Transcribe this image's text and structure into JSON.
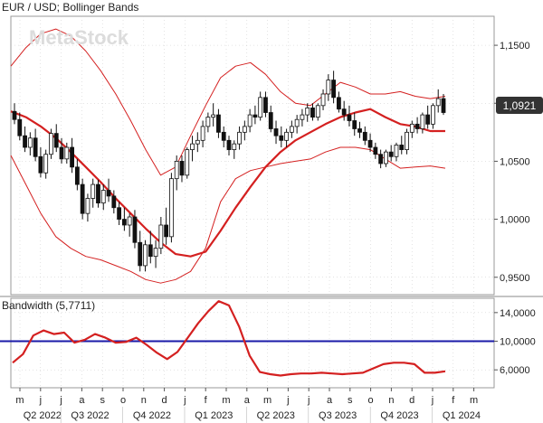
{
  "header": {
    "title": "EUR / USD; Bollinger Bands"
  },
  "watermark": "MetaStock",
  "price_badge": "1,0921",
  "bandwidth_panel": {
    "title": "Bandwidth (5,7711)"
  },
  "colors": {
    "background": "#ffffff",
    "grid": "#c8c8c8",
    "middle_band": "#d42020",
    "outer_band": "#d42020",
    "bandwidth_line": "#d42020",
    "reference_line": "#1a1aa8",
    "bull_candle": "#ffffff",
    "bear_candle": "#111111",
    "badge_bg": "#333333",
    "badge_text": "#ffffff"
  },
  "x_axis": {
    "month_ticks": [
      "m",
      "j",
      "j",
      "a",
      "s",
      "o",
      "n",
      "d",
      "j",
      "f",
      "m",
      "a",
      "m",
      "j",
      "j",
      "a",
      "s",
      "o",
      "n",
      "d",
      "j",
      "f",
      "m"
    ],
    "quarter_labels": [
      "Q2 2022",
      "Q3 2022",
      "Q4 2022",
      "Q1 2023",
      "Q2 2023",
      "Q3 2023",
      "Q4 2023",
      "Q1 2024"
    ]
  },
  "chart_data": [
    {
      "type": "candlestick",
      "title": "EUR / USD; Bollinger Bands",
      "y_ticks": [
        "1,1500",
        "1,1000",
        "1,0500",
        "1,0000",
        "0,9500"
      ],
      "ylim": [
        0.935,
        1.175
      ],
      "x_range": [
        "2022-05",
        "2024-03"
      ],
      "last_value": 1.0921,
      "candles": [
        {
          "o": 1.093,
          "h": 1.1,
          "l": 1.082,
          "c": 1.086
        },
        {
          "o": 1.086,
          "h": 1.092,
          "l": 1.068,
          "c": 1.072
        },
        {
          "o": 1.072,
          "h": 1.08,
          "l": 1.058,
          "c": 1.062
        },
        {
          "o": 1.062,
          "h": 1.075,
          "l": 1.055,
          "c": 1.07
        },
        {
          "o": 1.07,
          "h": 1.078,
          "l": 1.05,
          "c": 1.054
        },
        {
          "o": 1.054,
          "h": 1.062,
          "l": 1.036,
          "c": 1.04
        },
        {
          "o": 1.04,
          "h": 1.06,
          "l": 1.035,
          "c": 1.056
        },
        {
          "o": 1.056,
          "h": 1.078,
          "l": 1.052,
          "c": 1.074
        },
        {
          "o": 1.074,
          "h": 1.082,
          "l": 1.058,
          "c": 1.062
        },
        {
          "o": 1.062,
          "h": 1.07,
          "l": 1.048,
          "c": 1.052
        },
        {
          "o": 1.052,
          "h": 1.066,
          "l": 1.048,
          "c": 1.062
        },
        {
          "o": 1.062,
          "h": 1.07,
          "l": 1.04,
          "c": 1.045
        },
        {
          "o": 1.045,
          "h": 1.052,
          "l": 1.025,
          "c": 1.03
        },
        {
          "o": 1.03,
          "h": 1.035,
          "l": 1.0,
          "c": 1.005
        },
        {
          "o": 1.005,
          "h": 1.022,
          "l": 0.998,
          "c": 1.018
        },
        {
          "o": 1.018,
          "h": 1.035,
          "l": 1.01,
          "c": 1.03
        },
        {
          "o": 1.03,
          "h": 1.034,
          "l": 1.01,
          "c": 1.014
        },
        {
          "o": 1.014,
          "h": 1.03,
          "l": 1.008,
          "c": 1.025
        },
        {
          "o": 1.025,
          "h": 1.035,
          "l": 1.015,
          "c": 1.02
        },
        {
          "o": 1.02,
          "h": 1.025,
          "l": 1.005,
          "c": 1.01
        },
        {
          "o": 1.01,
          "h": 1.015,
          "l": 0.995,
          "c": 1.0
        },
        {
          "o": 1.0,
          "h": 1.01,
          "l": 0.99,
          "c": 0.995
        },
        {
          "o": 0.995,
          "h": 1.005,
          "l": 0.985,
          "c": 1.002
        },
        {
          "o": 1.002,
          "h": 1.008,
          "l": 0.975,
          "c": 0.98
        },
        {
          "o": 0.98,
          "h": 0.99,
          "l": 0.955,
          "c": 0.96
        },
        {
          "o": 0.96,
          "h": 0.982,
          "l": 0.955,
          "c": 0.978
        },
        {
          "o": 0.978,
          "h": 0.99,
          "l": 0.962,
          "c": 0.968
        },
        {
          "o": 0.968,
          "h": 0.982,
          "l": 0.958,
          "c": 0.975
        },
        {
          "o": 0.975,
          "h": 1.002,
          "l": 0.97,
          "c": 0.995
        },
        {
          "o": 0.995,
          "h": 1.01,
          "l": 0.978,
          "c": 0.985
        },
        {
          "o": 0.985,
          "h": 1.04,
          "l": 0.98,
          "c": 1.035
        },
        {
          "o": 1.035,
          "h": 1.055,
          "l": 1.025,
          "c": 1.05
        },
        {
          "o": 1.05,
          "h": 1.055,
          "l": 1.032,
          "c": 1.038
        },
        {
          "o": 1.038,
          "h": 1.062,
          "l": 1.035,
          "c": 1.06
        },
        {
          "o": 1.06,
          "h": 1.072,
          "l": 1.05,
          "c": 1.065
        },
        {
          "o": 1.065,
          "h": 1.075,
          "l": 1.058,
          "c": 1.068
        },
        {
          "o": 1.068,
          "h": 1.085,
          "l": 1.062,
          "c": 1.08
        },
        {
          "o": 1.08,
          "h": 1.092,
          "l": 1.075,
          "c": 1.088
        },
        {
          "o": 1.088,
          "h": 1.1,
          "l": 1.08,
          "c": 1.09
        },
        {
          "o": 1.09,
          "h": 1.095,
          "l": 1.07,
          "c": 1.075
        },
        {
          "o": 1.075,
          "h": 1.08,
          "l": 1.062,
          "c": 1.068
        },
        {
          "o": 1.068,
          "h": 1.072,
          "l": 1.055,
          "c": 1.06
        },
        {
          "o": 1.06,
          "h": 1.068,
          "l": 1.052,
          "c": 1.065
        },
        {
          "o": 1.065,
          "h": 1.08,
          "l": 1.06,
          "c": 1.075
        },
        {
          "o": 1.075,
          "h": 1.085,
          "l": 1.068,
          "c": 1.08
        },
        {
          "o": 1.08,
          "h": 1.095,
          "l": 1.075,
          "c": 1.09
        },
        {
          "o": 1.09,
          "h": 1.098,
          "l": 1.082,
          "c": 1.088
        },
        {
          "o": 1.088,
          "h": 1.11,
          "l": 1.085,
          "c": 1.105
        },
        {
          "o": 1.105,
          "h": 1.11,
          "l": 1.088,
          "c": 1.092
        },
        {
          "o": 1.092,
          "h": 1.098,
          "l": 1.075,
          "c": 1.078
        },
        {
          "o": 1.078,
          "h": 1.085,
          "l": 1.065,
          "c": 1.072
        },
        {
          "o": 1.072,
          "h": 1.08,
          "l": 1.062,
          "c": 1.068
        },
        {
          "o": 1.068,
          "h": 1.078,
          "l": 1.062,
          "c": 1.075
        },
        {
          "o": 1.075,
          "h": 1.085,
          "l": 1.07,
          "c": 1.08
        },
        {
          "o": 1.08,
          "h": 1.09,
          "l": 1.074,
          "c": 1.086
        },
        {
          "o": 1.086,
          "h": 1.095,
          "l": 1.08,
          "c": 1.09
        },
        {
          "o": 1.09,
          "h": 1.1,
          "l": 1.084,
          "c": 1.096
        },
        {
          "o": 1.096,
          "h": 1.1,
          "l": 1.085,
          "c": 1.088
        },
        {
          "o": 1.088,
          "h": 1.1,
          "l": 1.085,
          "c": 1.098
        },
        {
          "o": 1.098,
          "h": 1.112,
          "l": 1.094,
          "c": 1.108
        },
        {
          "o": 1.108,
          "h": 1.125,
          "l": 1.102,
          "c": 1.12
        },
        {
          "o": 1.12,
          "h": 1.128,
          "l": 1.1,
          "c": 1.105
        },
        {
          "o": 1.105,
          "h": 1.11,
          "l": 1.092,
          "c": 1.095
        },
        {
          "o": 1.095,
          "h": 1.102,
          "l": 1.085,
          "c": 1.09
        },
        {
          "o": 1.09,
          "h": 1.098,
          "l": 1.08,
          "c": 1.085
        },
        {
          "o": 1.085,
          "h": 1.092,
          "l": 1.072,
          "c": 1.078
        },
        {
          "o": 1.078,
          "h": 1.084,
          "l": 1.07,
          "c": 1.075
        },
        {
          "o": 1.075,
          "h": 1.08,
          "l": 1.064,
          "c": 1.068
        },
        {
          "o": 1.068,
          "h": 1.074,
          "l": 1.058,
          "c": 1.062
        },
        {
          "o": 1.062,
          "h": 1.066,
          "l": 1.052,
          "c": 1.056
        },
        {
          "o": 1.056,
          "h": 1.06,
          "l": 1.044,
          "c": 1.048
        },
        {
          "o": 1.048,
          "h": 1.06,
          "l": 1.045,
          "c": 1.058
        },
        {
          "o": 1.058,
          "h": 1.064,
          "l": 1.05,
          "c": 1.054
        },
        {
          "o": 1.054,
          "h": 1.066,
          "l": 1.05,
          "c": 1.064
        },
        {
          "o": 1.064,
          "h": 1.072,
          "l": 1.056,
          "c": 1.06
        },
        {
          "o": 1.06,
          "h": 1.078,
          "l": 1.056,
          "c": 1.075
        },
        {
          "o": 1.075,
          "h": 1.085,
          "l": 1.07,
          "c": 1.082
        },
        {
          "o": 1.082,
          "h": 1.088,
          "l": 1.074,
          "c": 1.078
        },
        {
          "o": 1.078,
          "h": 1.092,
          "l": 1.074,
          "c": 1.09
        },
        {
          "o": 1.09,
          "h": 1.098,
          "l": 1.078,
          "c": 1.082
        },
        {
          "o": 1.082,
          "h": 1.1,
          "l": 1.078,
          "c": 1.098
        },
        {
          "o": 1.098,
          "h": 1.112,
          "l": 1.092,
          "c": 1.104
        },
        {
          "o": 1.104,
          "h": 1.108,
          "l": 1.09,
          "c": 1.092
        }
      ],
      "middle_band": [
        1.093,
        1.088,
        1.08,
        1.07,
        1.058,
        1.045,
        1.032,
        1.018,
        1.005,
        0.992,
        0.98,
        0.97,
        0.968,
        0.972,
        0.99,
        1.01,
        1.028,
        1.045,
        1.058,
        1.068,
        1.075,
        1.082,
        1.088,
        1.092,
        1.095,
        1.088,
        1.082,
        1.08,
        1.076,
        1.076
      ],
      "upper_band": [
        1.132,
        1.148,
        1.16,
        1.164,
        1.158,
        1.145,
        1.128,
        1.108,
        1.085,
        1.06,
        1.038,
        1.045,
        1.072,
        1.098,
        1.122,
        1.132,
        1.135,
        1.125,
        1.11,
        1.1,
        1.098,
        1.108,
        1.118,
        1.114,
        1.108,
        1.108,
        1.11,
        1.106,
        1.104,
        1.106
      ],
      "lower_band": [
        1.055,
        1.03,
        1.005,
        0.985,
        0.975,
        0.968,
        0.965,
        0.96,
        0.955,
        0.948,
        0.945,
        0.948,
        0.955,
        0.975,
        1.015,
        1.035,
        1.042,
        1.045,
        1.048,
        1.05,
        1.052,
        1.058,
        1.062,
        1.062,
        1.06,
        1.052,
        1.044,
        1.045,
        1.046,
        1.044
      ]
    },
    {
      "type": "line",
      "title": "Bandwidth (5,7711)",
      "y_ticks": [
        "14,0000",
        "10,0000",
        "6,0000"
      ],
      "ylim": [
        3.5,
        16.0
      ],
      "reference_line": 10.0,
      "series": [
        {
          "values": [
            7.0,
            8.2,
            10.8,
            11.5,
            11.0,
            11.2,
            9.8,
            10.2,
            11.0,
            10.5,
            9.8,
            9.9,
            10.5,
            9.5,
            8.4,
            7.5,
            8.5,
            10.5,
            12.5,
            14.2,
            15.6,
            15.0,
            12.0,
            8.0,
            5.7,
            5.4,
            5.2,
            5.4,
            5.5,
            5.5,
            5.6,
            5.5,
            5.4,
            5.5,
            5.6,
            6.2,
            6.8,
            7.0,
            7.0,
            6.8,
            5.6,
            5.6,
            5.8
          ]
        }
      ]
    }
  ]
}
